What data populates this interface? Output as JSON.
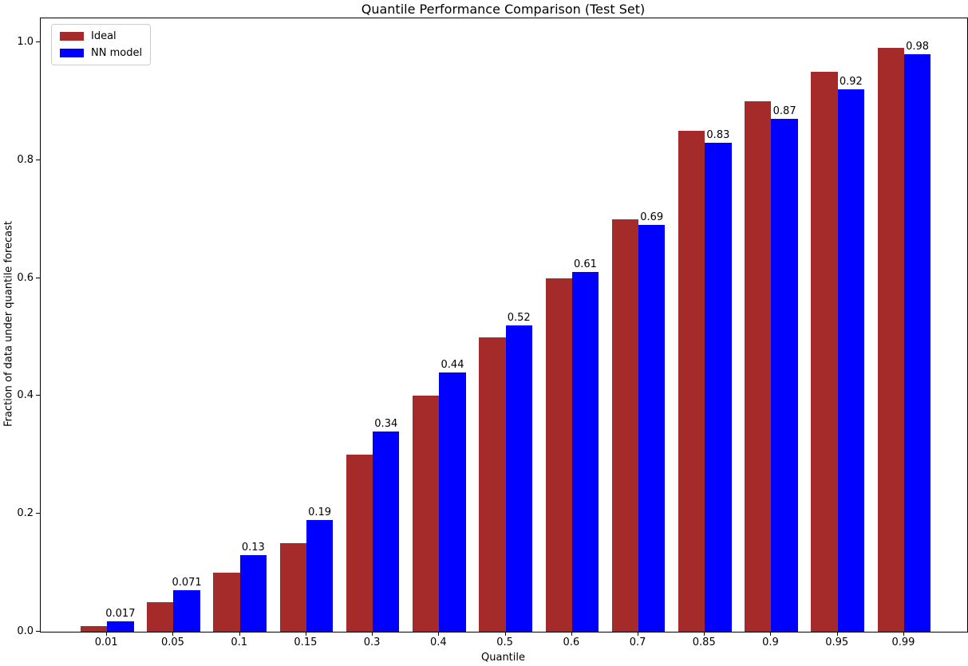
{
  "chart_data": {
    "type": "bar",
    "title": "Quantile Performance Comparison (Test Set)",
    "xlabel": "Quantile",
    "ylabel": "Fraction of data under quantile forecast",
    "categories": [
      "0.01",
      "0.05",
      "0.1",
      "0.15",
      "0.3",
      "0.4",
      "0.5",
      "0.6",
      "0.7",
      "0.85",
      "0.9",
      "0.95",
      "0.99"
    ],
    "series": [
      {
        "name": "Ideal",
        "color": "#a52a2a",
        "values": [
          0.01,
          0.05,
          0.1,
          0.15,
          0.3,
          0.4,
          0.5,
          0.6,
          0.7,
          0.85,
          0.9,
          0.95,
          0.99
        ]
      },
      {
        "name": "NN model",
        "color": "#0000ff",
        "values": [
          0.017,
          0.071,
          0.13,
          0.19,
          0.34,
          0.44,
          0.52,
          0.61,
          0.69,
          0.83,
          0.87,
          0.92,
          0.98
        ]
      }
    ],
    "bar_value_labels": [
      "0.017",
      "0.071",
      "0.13",
      "0.19",
      "0.34",
      "0.44",
      "0.52",
      "0.61",
      "0.69",
      "0.83",
      "0.87",
      "0.92",
      "0.98"
    ],
    "yticks": {
      "values": [
        0.0,
        0.2,
        0.4,
        0.6,
        0.8,
        1.0
      ],
      "labels": [
        "0.0",
        "0.2",
        "0.4",
        "0.6",
        "0.8",
        "1.0"
      ]
    },
    "ylim": [
      0,
      1.04
    ],
    "grid": false,
    "legend": {
      "position": "upper left",
      "entries": [
        {
          "label": "Ideal",
          "color": "#a52a2a"
        },
        {
          "label": "NN model",
          "color": "#0000ff"
        }
      ]
    },
    "colors": {
      "axis": "#000000",
      "background": "#ffffff",
      "text": "#000000"
    }
  }
}
